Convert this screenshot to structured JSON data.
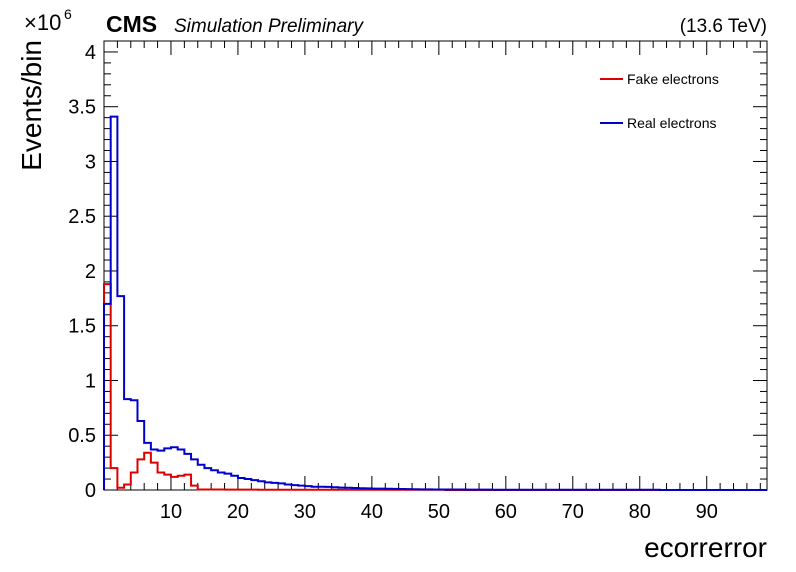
{
  "header": {
    "experiment": "CMS",
    "subtitle": "Simulation Preliminary",
    "energy": "(13.6 TeV)"
  },
  "chart_data": {
    "type": "histogram-step",
    "xlabel": "ecorrerror",
    "ylabel": "Events/bin",
    "y_multiplier": "×10",
    "y_multiplier_exp": "6",
    "xlim": [
      0,
      99
    ],
    "ylim": [
      0,
      4.1
    ],
    "bin_width": 1,
    "x_ticks": [
      10,
      20,
      30,
      40,
      50,
      60,
      70,
      80,
      90
    ],
    "y_ticks": [
      0,
      0.5,
      1,
      1.5,
      2,
      2.5,
      3,
      3.5,
      4
    ],
    "y_tick_labels": [
      "0",
      "0.5",
      "1",
      "1.5",
      "2",
      "2.5",
      "3",
      "3.5",
      "4"
    ],
    "legend_position": "top-right",
    "series": [
      {
        "name": "Fake electrons",
        "color": "#dd0000",
        "values": [
          1.88,
          0.2,
          0.02,
          0.05,
          0.16,
          0.28,
          0.34,
          0.25,
          0.16,
          0.14,
          0.12,
          0.13,
          0.14,
          0.04,
          0.005,
          0.004,
          0.004,
          0.004,
          0.003,
          0.003,
          0.003,
          0.003,
          0.003,
          0.002,
          0.002,
          0.002,
          0.002,
          0.002,
          0.002,
          0.002,
          0.002,
          0.002,
          0.002,
          0.002,
          0.002,
          0.002,
          0.002,
          0.002,
          0.002,
          0.002,
          0.002,
          0.002,
          0.002,
          0.002,
          0.002,
          0.002,
          0.002,
          0.002,
          0.002,
          0.002,
          0.002,
          0,
          0,
          0,
          0,
          0,
          0,
          0,
          0,
          0,
          0,
          0,
          0,
          0,
          0,
          0,
          0,
          0,
          0,
          0,
          0,
          0,
          0,
          0,
          0,
          0,
          0,
          0,
          0,
          0,
          0,
          0,
          0,
          0,
          0,
          0,
          0,
          0,
          0,
          0,
          0,
          0,
          0,
          0,
          0,
          0,
          0,
          0,
          0
        ]
      },
      {
        "name": "Real electrons",
        "color": "#0000cc",
        "values": [
          1.7,
          3.41,
          1.77,
          0.83,
          0.82,
          0.63,
          0.43,
          0.37,
          0.36,
          0.38,
          0.39,
          0.37,
          0.33,
          0.28,
          0.23,
          0.2,
          0.18,
          0.16,
          0.15,
          0.13,
          0.11,
          0.1,
          0.09,
          0.08,
          0.07,
          0.065,
          0.06,
          0.05,
          0.045,
          0.04,
          0.035,
          0.03,
          0.03,
          0.028,
          0.025,
          0.022,
          0.02,
          0.018,
          0.016,
          0.015,
          0.013,
          0.012,
          0.011,
          0.01,
          0.009,
          0.008,
          0.007,
          0.006,
          0.006,
          0.005,
          0.005,
          0.004,
          0.004,
          0.004,
          0.003,
          0.003,
          0.003,
          0.003,
          0.002,
          0.002,
          0.002,
          0.002,
          0.002,
          0.002,
          0.002,
          0.002,
          0.002,
          0.002,
          0.002,
          0.002,
          0.002,
          0.002,
          0.002,
          0.002,
          0.002,
          0.002,
          0.002,
          0.002,
          0.002,
          0.002,
          0.002,
          0.002,
          0.002,
          0,
          0,
          0,
          0,
          0,
          0,
          0,
          0,
          0,
          0,
          0,
          0,
          0,
          0,
          0,
          0
        ]
      }
    ]
  }
}
